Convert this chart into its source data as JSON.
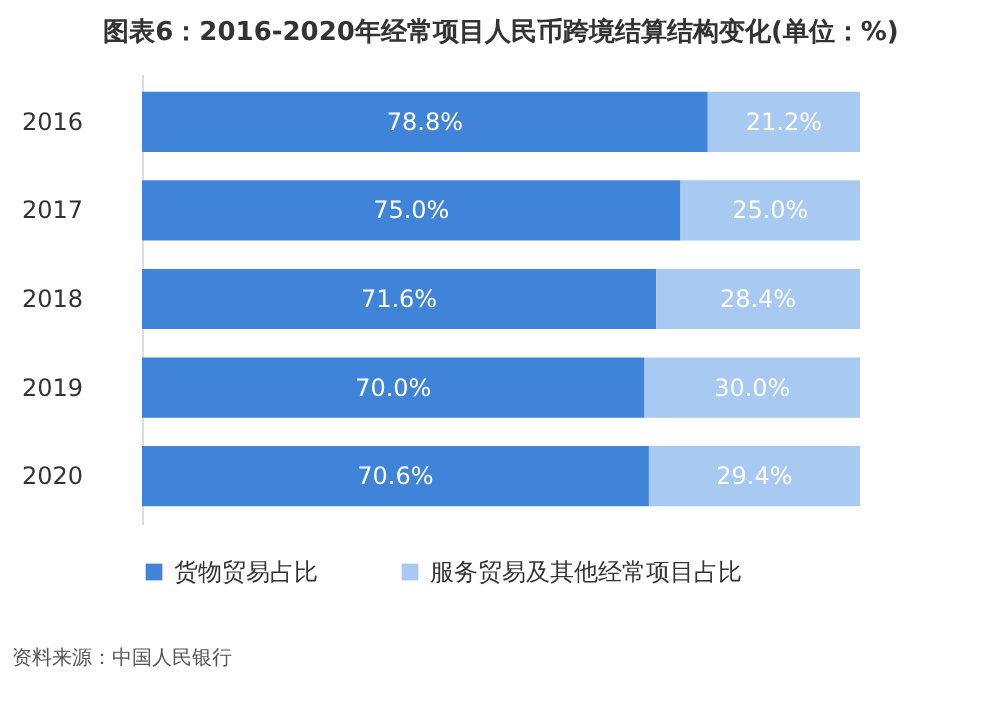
{
  "chart_data": {
    "type": "bar",
    "orientation": "horizontal",
    "stacked": true,
    "tick_labels": "y",
    "title": "图表6：2016-2020年经常项目人民币跨境结算结构变化(单位：%)",
    "categories": [
      "2016",
      "2017",
      "2018",
      "2019",
      "2020"
    ],
    "series": [
      {
        "name": "货物贸易占比",
        "color": "#3f84d9",
        "values": [
          78.8,
          75.0,
          71.6,
          70.0,
          70.6
        ],
        "value_labels": [
          "78.8%",
          "75.0%",
          "71.6%",
          "70.0%",
          "70.6%"
        ]
      },
      {
        "name": "服务贸易及其他经常项目占比",
        "color": "#a8c9f2",
        "values": [
          21.2,
          25.0,
          28.4,
          30.0,
          29.4
        ],
        "value_labels": [
          "21.2%",
          "25.0%",
          "28.4%",
          "30.0%",
          "29.4%"
        ]
      }
    ],
    "legend": "bottom",
    "annotations": [
      "资料来源：中国人民银行"
    ]
  }
}
